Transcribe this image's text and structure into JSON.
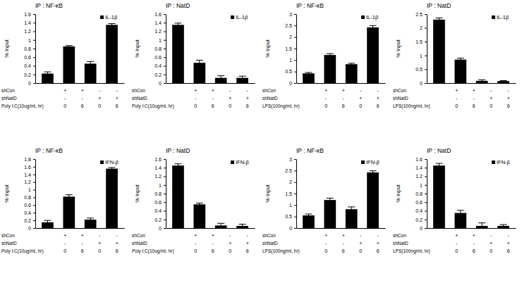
{
  "chart_data": [
    {
      "type": "bar",
      "title": "IP : NF-κB",
      "y_label": "% Input",
      "legend": "top-right",
      "grid": false,
      "categories": [
        null,
        null,
        null,
        null
      ],
      "ylim": [
        0,
        1.6
      ],
      "yticks": [
        0,
        0.2,
        0.4,
        0.6,
        0.8,
        1,
        1.2,
        1.4,
        1.6
      ],
      "series": [
        {
          "name": "IL-1β",
          "color": "#000000",
          "values": [
            0.22,
            0.85,
            0.45,
            1.35
          ],
          "errors": [
            0.04,
            0.02,
            0.05,
            0.03
          ]
        }
      ],
      "x_table": [
        {
          "label": "shCon",
          "cells": [
            "+",
            "+",
            "-",
            "-"
          ]
        },
        {
          "label": "shNatD",
          "cells": [
            "-",
            "-",
            "+",
            "+"
          ]
        },
        {
          "label": "Poly I:C(10ug/ml, hr)",
          "cells": [
            "0",
            "6",
            "0",
            "6"
          ]
        }
      ]
    },
    {
      "type": "bar",
      "title": "IP : NatD",
      "y_label": "% Input",
      "legend": "top-right",
      "grid": false,
      "categories": [
        null,
        null,
        null,
        null
      ],
      "ylim": [
        0,
        1.6
      ],
      "yticks": [
        0,
        0.2,
        0.4,
        0.6,
        0.8,
        1,
        1.2,
        1.4,
        1.6
      ],
      "series": [
        {
          "name": "IL-1β",
          "color": "#000000",
          "values": [
            1.35,
            0.47,
            0.12,
            0.12
          ],
          "errors": [
            0.04,
            0.06,
            0.05,
            0.04
          ]
        }
      ],
      "x_table": [
        {
          "label": "shCon",
          "cells": [
            "+",
            "+",
            "-",
            "-"
          ]
        },
        {
          "label": "shNatD",
          "cells": [
            "-",
            "-",
            "+",
            "+"
          ]
        },
        {
          "label": "Poly I:C(10ug/ml, hr)",
          "cells": [
            "0",
            "6",
            "0",
            "6"
          ]
        }
      ]
    },
    {
      "type": "bar",
      "title": "IP : NF-κB",
      "y_label": "% Input",
      "legend": "top-right",
      "grid": false,
      "categories": [
        null,
        null,
        null,
        null
      ],
      "ylim": [
        0,
        3
      ],
      "yticks": [
        0,
        0.5,
        1,
        1.5,
        2,
        2.5,
        3
      ],
      "series": [
        {
          "name": "IL-1β",
          "color": "#000000",
          "values": [
            0.42,
            1.22,
            0.82,
            2.42
          ],
          "errors": [
            0.04,
            0.06,
            0.04,
            0.08
          ]
        }
      ],
      "x_table": [
        {
          "label": "shCon",
          "cells": [
            "+",
            "+",
            "-",
            "-"
          ]
        },
        {
          "label": "shNatD",
          "cells": [
            "-",
            "-",
            "+",
            "+"
          ]
        },
        {
          "label": "LPS(100ng/ml, hr)",
          "cells": [
            "0",
            "6",
            "0",
            "6"
          ]
        }
      ]
    },
    {
      "type": "bar",
      "title": "IP : NatD",
      "y_label": "% Input",
      "legend": "top-right",
      "grid": false,
      "categories": [
        null,
        null,
        null,
        null
      ],
      "ylim": [
        0,
        2.5
      ],
      "yticks": [
        0,
        0.5,
        1,
        1.5,
        2,
        2.5
      ],
      "series": [
        {
          "name": "IL-1β",
          "color": "#000000",
          "values": [
            2.3,
            0.85,
            0.08,
            0.07
          ],
          "errors": [
            0.06,
            0.05,
            0.04,
            0.02
          ]
        }
      ],
      "x_table": [
        {
          "label": "shCon",
          "cells": [
            "+",
            "+",
            "-",
            "-"
          ]
        },
        {
          "label": "shNatD",
          "cells": [
            "-",
            "-",
            "+",
            "+"
          ]
        },
        {
          "label": "LPS(100ng/ml, hr)",
          "cells": [
            "0",
            "6",
            "0",
            "6"
          ]
        }
      ]
    },
    {
      "type": "bar",
      "title": "IP : NF-κB",
      "y_label": "% Input",
      "legend": "top-right",
      "grid": false,
      "categories": [
        null,
        null,
        null,
        null
      ],
      "ylim": [
        0,
        1.8
      ],
      "yticks": [
        0,
        0.2,
        0.4,
        0.6,
        0.8,
        1,
        1.2,
        1.4,
        1.6,
        1.8
      ],
      "series": [
        {
          "name": "IFN-β",
          "color": "#000000",
          "values": [
            0.15,
            0.82,
            0.22,
            1.55
          ],
          "errors": [
            0.05,
            0.05,
            0.04,
            0.03
          ]
        }
      ],
      "x_table": [
        {
          "label": "shCon",
          "cells": [
            "+",
            "+",
            "-",
            "-"
          ]
        },
        {
          "label": "shNatD",
          "cells": [
            "-",
            "-",
            "+",
            "+"
          ]
        },
        {
          "label": "Poly I:C(10ug/ml, hr)",
          "cells": [
            "0",
            "6",
            "0",
            "6"
          ]
        }
      ]
    },
    {
      "type": "bar",
      "title": "IP : NatD",
      "y_label": "% Input",
      "legend": "top-right",
      "grid": false,
      "categories": [
        null,
        null,
        null,
        null
      ],
      "ylim": [
        0,
        1.6
      ],
      "yticks": [
        0,
        0.2,
        0.4,
        0.6,
        0.8,
        1,
        1.2,
        1.4,
        1.6
      ],
      "series": [
        {
          "name": "IFN-β",
          "color": "#000000",
          "values": [
            1.45,
            0.55,
            0.06,
            0.05
          ],
          "errors": [
            0.04,
            0.03,
            0.05,
            0.04
          ]
        }
      ],
      "x_table": [
        {
          "label": "shCon",
          "cells": [
            "+",
            "+",
            "-",
            "-"
          ]
        },
        {
          "label": "shNatD",
          "cells": [
            "-",
            "-",
            "+",
            "+"
          ]
        },
        {
          "label": "Poly I:C(10ug/ml, hr)",
          "cells": [
            "0",
            "6",
            "0",
            "6"
          ]
        }
      ]
    },
    {
      "type": "bar",
      "title": "IP : NF-κB",
      "y_label": "% Input",
      "legend": "top-right",
      "grid": false,
      "categories": [
        null,
        null,
        null,
        null
      ],
      "ylim": [
        0,
        3
      ],
      "yticks": [
        0,
        0.5,
        1,
        1.5,
        2,
        2.5,
        3
      ],
      "series": [
        {
          "name": "IFN-β",
          "color": "#000000",
          "values": [
            0.55,
            1.22,
            0.82,
            2.42
          ],
          "errors": [
            0.06,
            0.08,
            0.1,
            0.07
          ]
        }
      ],
      "x_table": [
        {
          "label": "shCon",
          "cells": [
            "+",
            "+",
            "-",
            "-"
          ]
        },
        {
          "label": "shNatD",
          "cells": [
            "-",
            "-",
            "+",
            "+"
          ]
        },
        {
          "label": "LPS(100ng/ml, hr)",
          "cells": [
            "0",
            "6",
            "0",
            "6"
          ]
        }
      ]
    },
    {
      "type": "bar",
      "title": "IP : NatD",
      "y_label": "% Input",
      "legend": "top-right",
      "grid": false,
      "categories": [
        null,
        null,
        null,
        null
      ],
      "ylim": [
        0,
        1.6
      ],
      "yticks": [
        0,
        0.2,
        0.4,
        0.6,
        0.8,
        1,
        1.2,
        1.4,
        1.6
      ],
      "series": [
        {
          "name": "IFN-β",
          "color": "#000000",
          "values": [
            1.45,
            0.35,
            0.05,
            0.05
          ],
          "errors": [
            0.05,
            0.06,
            0.07,
            0.03
          ]
        }
      ],
      "x_table": [
        {
          "label": "shCon",
          "cells": [
            "+",
            "+",
            "-",
            "-"
          ]
        },
        {
          "label": "shNatD",
          "cells": [
            "-",
            "-",
            "+",
            "+"
          ]
        },
        {
          "label": "LPS(100ng/ml, hr)",
          "cells": [
            "0",
            "6",
            "0",
            "6"
          ]
        }
      ]
    }
  ]
}
